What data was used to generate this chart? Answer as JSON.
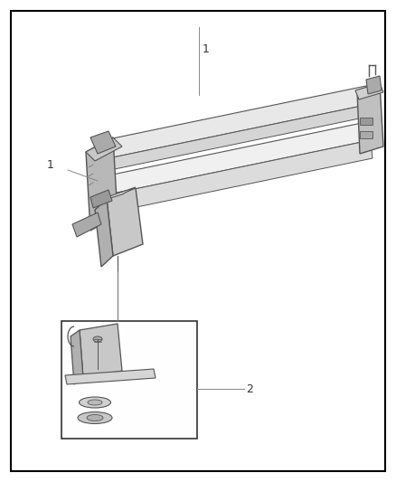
{
  "background_color": "#ffffff",
  "border_color": "#000000",
  "edge_color": "#555555",
  "dark_gray": "#888888",
  "mid_gray": "#aaaaaa",
  "light_gray": "#d8d8d8",
  "very_light_gray": "#eeeeee",
  "label1_text": "1",
  "label2_text": "2",
  "fig_width": 4.38,
  "fig_height": 5.33,
  "dpi": 100
}
